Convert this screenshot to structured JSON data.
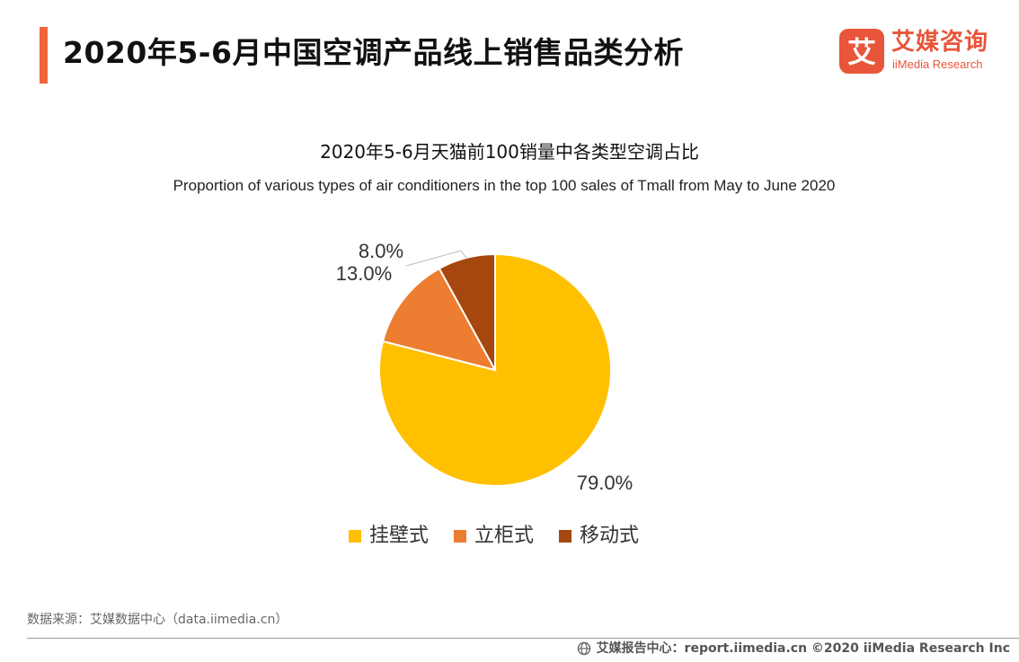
{
  "header": {
    "title": "2020年5-6月中国空调产品线上销售品类分析"
  },
  "logo": {
    "mark_glyph": "艾",
    "name_cn": "艾媒咨询",
    "name_en": "iiMedia Research"
  },
  "colors": {
    "accent": "#f0643a",
    "brand": "#e8553a"
  },
  "chart_data": {
    "type": "pie",
    "title": "2020年5-6月天猫前100销量中各类型空调占比",
    "subtitle": "Proportion of various types of air conditioners in the top 100 sales of Tmall from May to June 2020",
    "slices": [
      {
        "label": "挂壁式",
        "value": 79.0,
        "display": "79.0%",
        "color": "#ffc000"
      },
      {
        "label": "立柜式",
        "value": 13.0,
        "display": "13.0%",
        "color": "#ed7d31"
      },
      {
        "label": "移动式",
        "value": 8.0,
        "display": "8.0%",
        "color": "#a5470e"
      }
    ],
    "start": "12 o'clock",
    "direction": "clockwise",
    "legend_position": "bottom"
  },
  "footer": {
    "source": "数据来源：艾媒数据中心（data.iimedia.cn）",
    "report": "艾媒报告中心：report.iimedia.cn  ©2020  iiMedia Research  Inc"
  }
}
